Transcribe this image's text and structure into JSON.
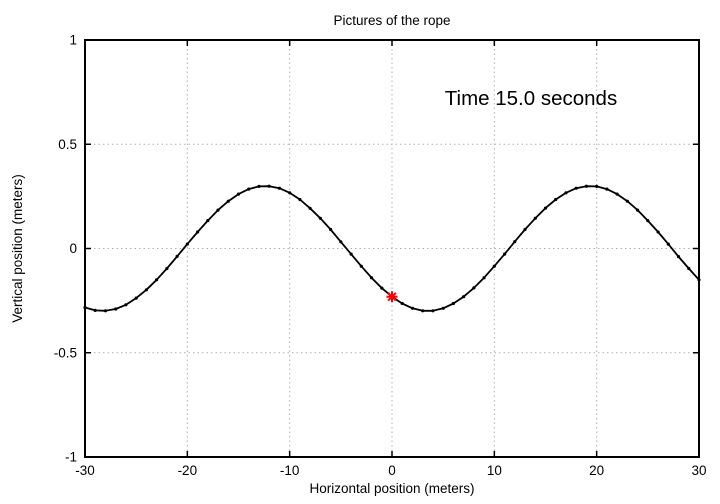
{
  "chart_data": {
    "type": "line",
    "title": "Pictures of the rope",
    "xlabel": "Horizontal position (meters)",
    "ylabel": "Vertical position (meters)",
    "annotation": "Time 15.0 seconds",
    "xlim": [
      -30,
      30
    ],
    "ylim": [
      -1,
      1
    ],
    "x_ticks": [
      -30,
      -20,
      -10,
      0,
      10,
      20,
      30
    ],
    "y_ticks": [
      -1,
      -0.5,
      0,
      0.5,
      1
    ],
    "grid": true,
    "grid_style": "dotted",
    "legend": "none",
    "colors": {
      "curve": "#000000",
      "marker": "#ff0000",
      "grid": "#b0b0b0",
      "border": "#000000",
      "background": "#ffffff",
      "text": "#000000"
    },
    "series": [
      {
        "name": "rope",
        "style": "linespoints",
        "color": "#000000",
        "x": [
          -30,
          -29,
          -28,
          -27,
          -26,
          -25,
          -24,
          -23,
          -22,
          -21,
          -20,
          -19,
          -18,
          -17,
          -16,
          -15,
          -14,
          -13,
          -12,
          -11,
          -10,
          -9,
          -8,
          -7,
          -6,
          -5,
          -4,
          -3,
          -2,
          -1,
          0,
          1,
          2,
          3,
          4,
          5,
          6,
          7,
          8,
          9,
          10,
          11,
          12,
          13,
          14,
          15,
          16,
          17,
          18,
          19,
          20,
          21,
          22,
          23,
          24,
          25,
          26,
          27,
          28,
          29,
          30
        ],
        "y": [
          -0.283,
          -0.297,
          -0.299,
          -0.29,
          -0.27,
          -0.238,
          -0.198,
          -0.15,
          -0.096,
          -0.038,
          0.021,
          0.079,
          0.134,
          0.184,
          0.227,
          0.261,
          0.285,
          0.298,
          0.299,
          0.289,
          0.267,
          0.235,
          0.193,
          0.145,
          0.091,
          0.032,
          -0.027,
          -0.085,
          -0.14,
          -0.19,
          -0.231,
          -0.264,
          -0.287,
          -0.299,
          -0.299,
          -0.287,
          -0.264,
          -0.231,
          -0.189,
          -0.14,
          -0.085,
          -0.027,
          0.033,
          0.091,
          0.145,
          0.194,
          0.235,
          0.267,
          0.289,
          0.299,
          0.298,
          0.285,
          0.261,
          0.227,
          0.184,
          0.134,
          0.079,
          0.021,
          -0.039,
          -0.096,
          -0.15
        ]
      }
    ],
    "marker_point": {
      "x": 0,
      "y": -0.231,
      "shape": "asterisk",
      "color": "#ff0000"
    }
  }
}
